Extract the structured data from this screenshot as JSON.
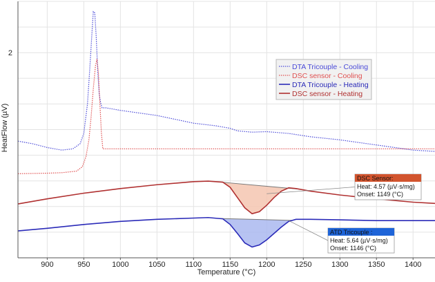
{
  "chart_data": {
    "type": "line",
    "title": "",
    "xlabel": "Temperature (°C)",
    "ylabel": "HeatFlow (µV)",
    "xlim": [
      860,
      1430
    ],
    "xticks": [
      900,
      950,
      1000,
      1050,
      1100,
      1150,
      1200,
      1250,
      1300,
      1350,
      1400
    ],
    "ylim": [
      0,
      10
    ],
    "y_tick_labels": [
      "2"
    ],
    "grid": true,
    "legend_position": "upper-right",
    "series": [
      {
        "name": "DTA Tricouple - Cooling",
        "color": "#4a4ad8",
        "style": "dotted",
        "x": [
          860,
          880,
          900,
          920,
          935,
          945,
          950,
          955,
          958,
          961,
          963,
          965,
          967,
          969,
          971,
          973,
          975,
          980,
          1000,
          1050,
          1100,
          1130,
          1150,
          1160,
          1180,
          1200,
          1230,
          1260,
          1300,
          1350,
          1400,
          1430
        ],
        "y": [
          4.55,
          4.45,
          4.3,
          4.2,
          4.25,
          4.45,
          4.85,
          6.0,
          7.3,
          8.7,
          9.6,
          9.55,
          8.6,
          7.3,
          6.4,
          6.05,
          5.85,
          5.85,
          5.75,
          5.55,
          5.25,
          5.15,
          5.05,
          4.95,
          4.9,
          4.92,
          4.85,
          4.72,
          4.6,
          4.4,
          4.2,
          4.15
        ]
      },
      {
        "name": "DSC sensor - Cooling",
        "color": "#e05050",
        "style": "dotted",
        "x": [
          860,
          900,
          920,
          940,
          948,
          953,
          957,
          960,
          963,
          966,
          968,
          970,
          972,
          974,
          976,
          980,
          1000,
          1100,
          1200,
          1300,
          1400,
          1430
        ],
        "y": [
          3.28,
          3.3,
          3.32,
          3.38,
          3.55,
          3.95,
          4.6,
          5.5,
          6.6,
          7.5,
          7.75,
          7.2,
          6.0,
          4.9,
          4.25,
          4.25,
          4.25,
          4.25,
          4.25,
          4.25,
          4.25,
          4.25
        ]
      },
      {
        "name": "DTA Tricouple - Heating",
        "color": "#2a2ab8",
        "style": "solid",
        "x": [
          860,
          900,
          950,
          1000,
          1050,
          1100,
          1120,
          1140,
          1150,
          1160,
          1170,
          1180,
          1190,
          1200,
          1210,
          1220,
          1230,
          1240,
          1260,
          1300,
          1350,
          1400,
          1430
        ],
        "y": [
          1.05,
          1.15,
          1.3,
          1.42,
          1.5,
          1.55,
          1.57,
          1.52,
          1.3,
          0.95,
          0.58,
          0.42,
          0.5,
          0.7,
          0.95,
          1.2,
          1.42,
          1.5,
          1.5,
          1.48,
          1.45,
          1.45,
          1.45
        ]
      },
      {
        "name": "DSC sensor - Heating",
        "color": "#b03030",
        "style": "solid",
        "x": [
          860,
          900,
          950,
          1000,
          1050,
          1100,
          1120,
          1140,
          1150,
          1160,
          1170,
          1180,
          1190,
          1200,
          1210,
          1220,
          1230,
          1240,
          1260,
          1300,
          1350,
          1400,
          1430
        ],
        "y": [
          2.1,
          2.3,
          2.52,
          2.7,
          2.85,
          2.97,
          2.99,
          2.95,
          2.75,
          2.35,
          1.95,
          1.72,
          1.8,
          2.05,
          2.35,
          2.6,
          2.73,
          2.7,
          2.6,
          2.45,
          2.3,
          2.17,
          2.12
        ]
      }
    ],
    "annotations": [
      {
        "name": "DSC Sensor:",
        "heat_label": "Heat:",
        "heat_value": "4.57 (µV·s/mg)",
        "onset_label": "Onset:",
        "onset_value": "1149 (°C)",
        "peak_range": [
          1130,
          1245
        ],
        "fill": "#f4c6b0",
        "header": "#d2542e"
      },
      {
        "name": "ATD Tricouple :",
        "heat_label": "Heat:",
        "heat_value": "5.64 (µV·s/mg)",
        "onset_label": "Onset:",
        "onset_value": "1146 (°C)",
        "peak_range": [
          1135,
          1235
        ],
        "fill": "#aab8f0",
        "header": "#1e64d8"
      }
    ]
  }
}
